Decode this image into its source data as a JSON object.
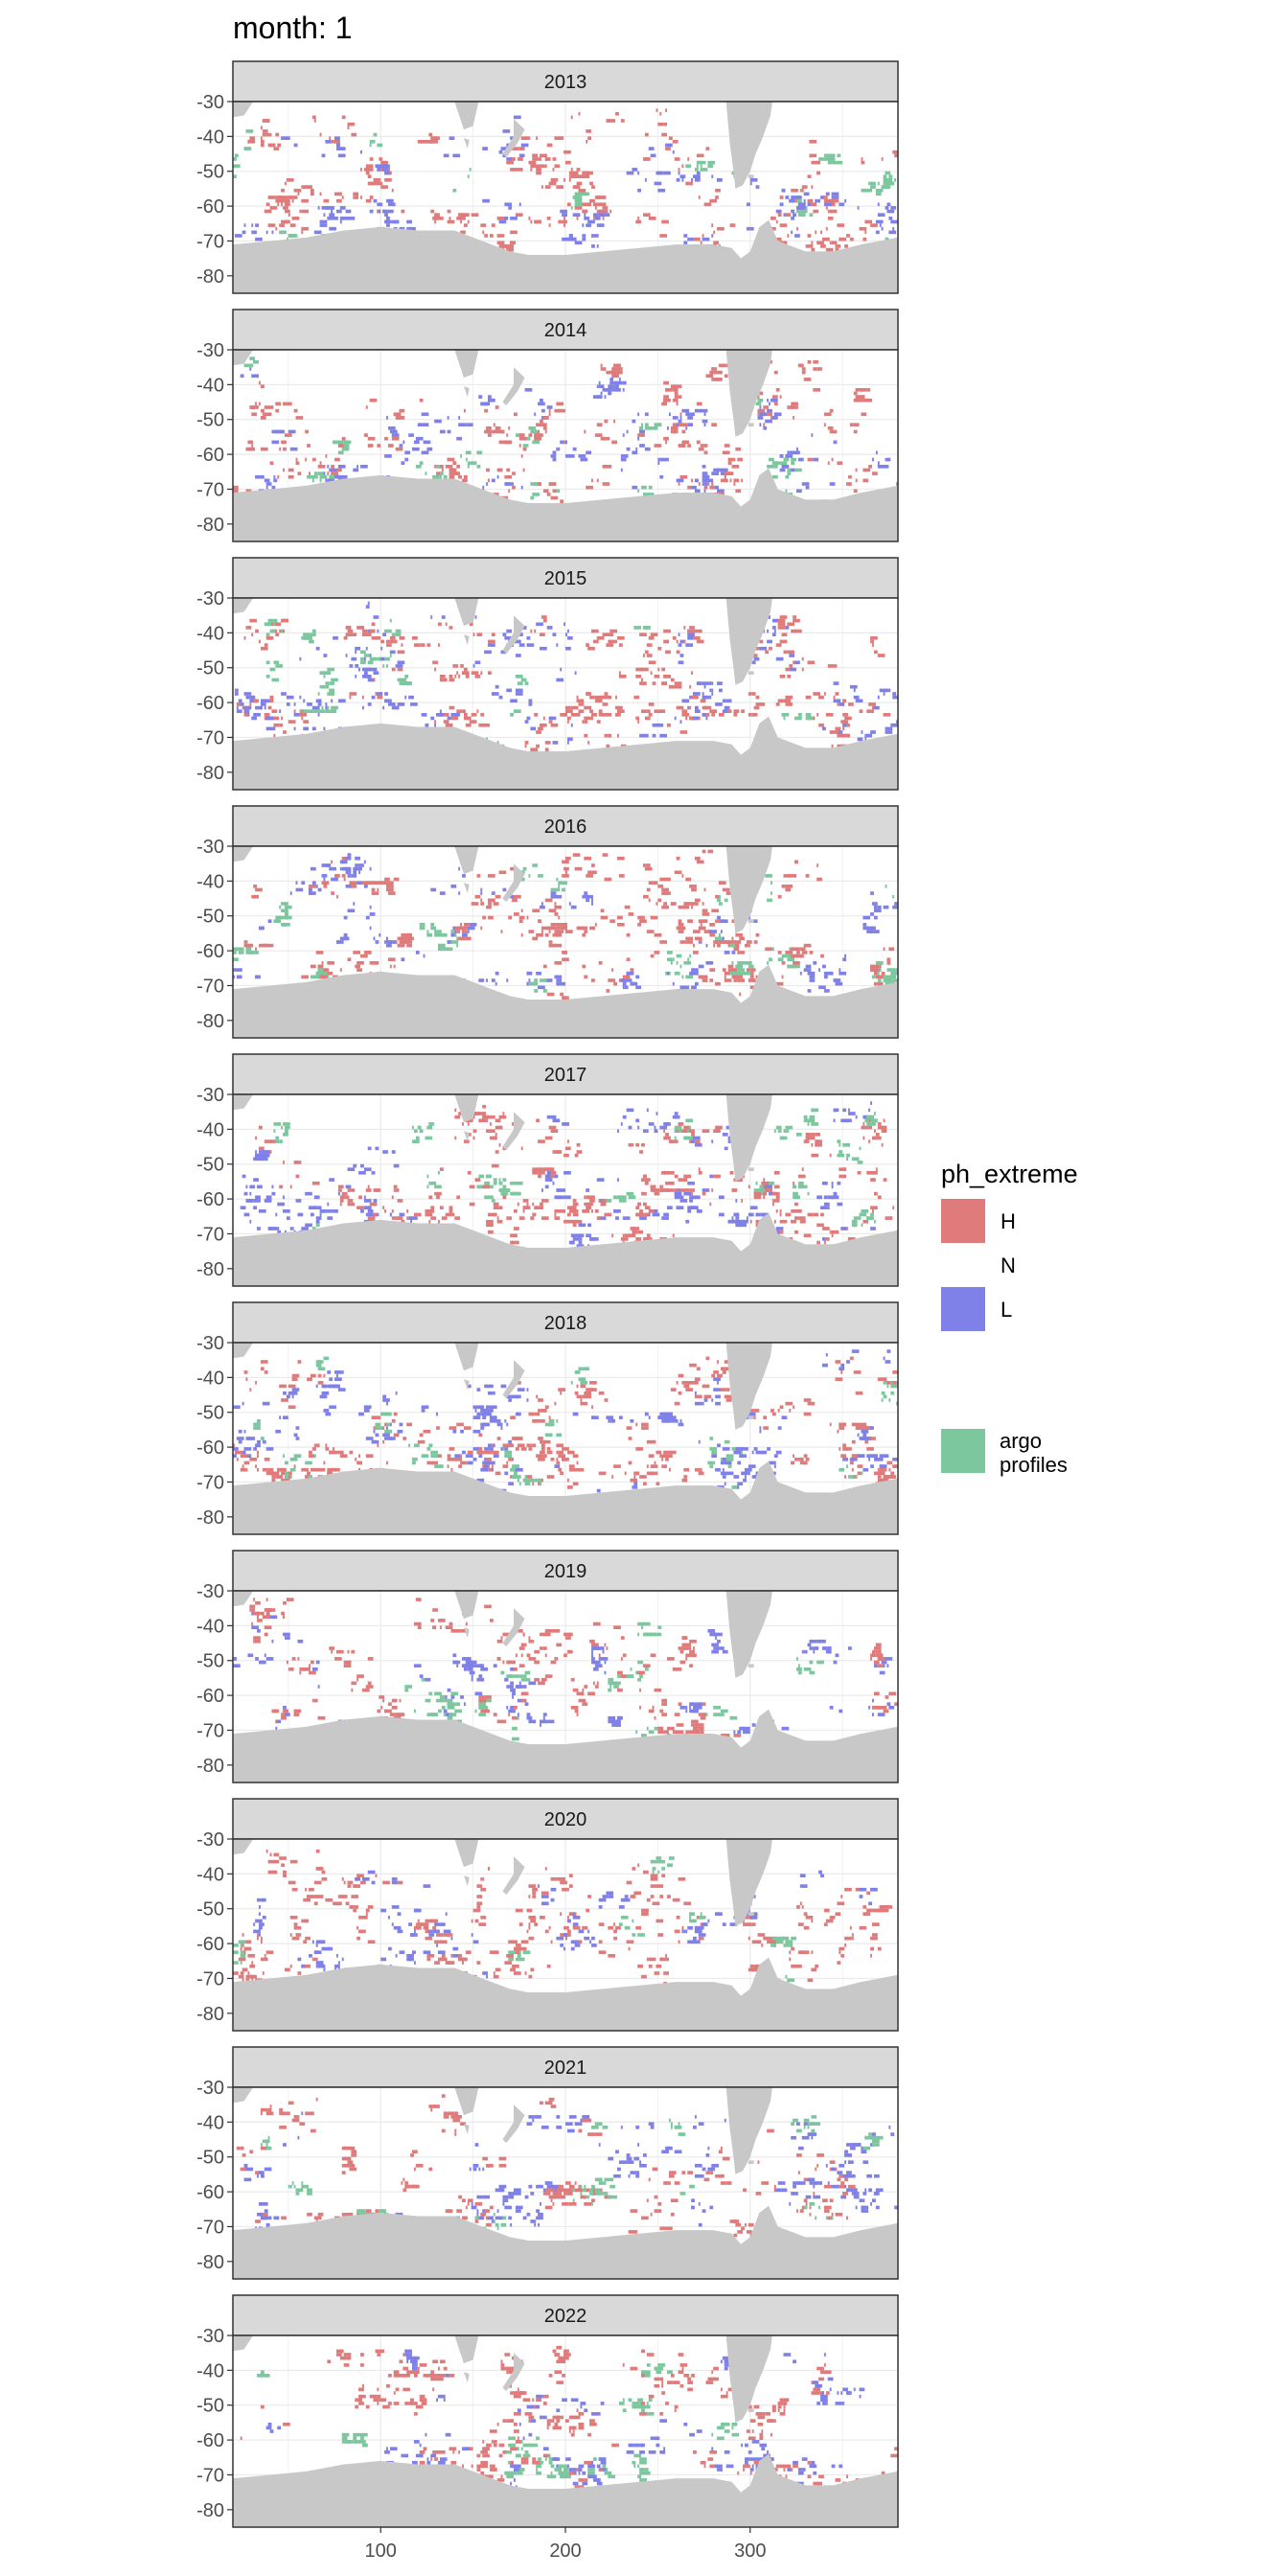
{
  "title": "month: 1",
  "legend": {
    "title": "ph_extreme",
    "items": [
      {
        "label": "H",
        "color": "#E07B7B"
      },
      {
        "label": "N",
        "color": "#FFFFFF"
      },
      {
        "label": "L",
        "color": "#7F80E8"
      }
    ],
    "extra": {
      "label_line1": "argo",
      "label_line2": "profiles",
      "color": "#7DC79F"
    }
  },
  "colors": {
    "land": "#C8C8C8",
    "strip": "#D9D9D9",
    "grid": "#EBEBEB",
    "argo_dark": "#138C46"
  },
  "chart_data": {
    "type": "map-facets",
    "facet_variable": "year",
    "facets": [
      "2013",
      "2014",
      "2015",
      "2016",
      "2017",
      "2018",
      "2019",
      "2020",
      "2021",
      "2022"
    ],
    "x_ticks": [
      100,
      200,
      300
    ],
    "y_ticks": [
      -30,
      -40,
      -50,
      -60,
      -70,
      -80
    ],
    "xlim": [
      20,
      380
    ],
    "ylim": [
      -85,
      -30
    ],
    "fill_categories": [
      "H",
      "N",
      "L"
    ],
    "layer": "argo profiles",
    "grid": true,
    "legend_position": "right"
  }
}
